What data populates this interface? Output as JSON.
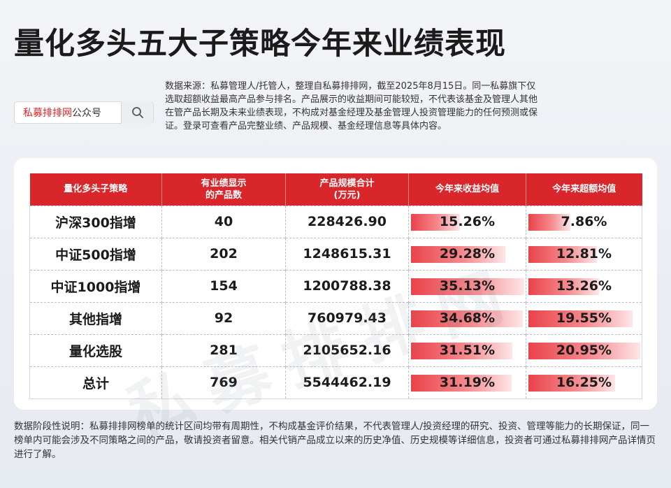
{
  "title": "量化多头五大子策略今年来业绩表现",
  "search": {
    "brand": "私募排排网",
    "suffix": "公众号",
    "icon": "search-icon"
  },
  "source_note": "数据来源：私募管理人/托管人，整理自私募排排网，截至2025年8月15日。同一私募旗下仅选取超额收益最高产品参与排名。产品展示的收益期间可能较短，不代表该基金及管理人其他在管产品长期及未来业绩表现，不构成对基金经理及基金管理人投资管理能力的任何预测或保证。登录可查看产品完整业绩、产品规模、基金经理信息等具体内容。",
  "watermark": "私募排排网",
  "colors": {
    "header_red": "#d8262b",
    "bar_red": "#e9434a"
  },
  "table": {
    "headers": [
      "量化多头子策略",
      "有业绩显示\n的产品数",
      "产品规模合计\n(万元)",
      "今年来收益均值",
      "今年来超额均值"
    ],
    "bar_scale": {
      "return_max": 35.13,
      "excess_max": 20.95
    },
    "rows": [
      {
        "strategy": "沪深300指增",
        "count": "40",
        "scale": "228426.90",
        "ret": "15.26%",
        "ret_value": 15.26,
        "excess": "7.86%",
        "excess_value": 7.86
      },
      {
        "strategy": "中证500指增",
        "count": "202",
        "scale": "1248615.31",
        "ret": "29.28%",
        "ret_value": 29.28,
        "excess": "12.81%",
        "excess_value": 12.81
      },
      {
        "strategy": "中证1000指增",
        "count": "154",
        "scale": "1200788.38",
        "ret": "35.13%",
        "ret_value": 35.13,
        "excess": "13.26%",
        "excess_value": 13.26
      },
      {
        "strategy": "其他指增",
        "count": "92",
        "scale": "760979.43",
        "ret": "34.68%",
        "ret_value": 34.68,
        "excess": "19.55%",
        "excess_value": 19.55
      },
      {
        "strategy": "量化选股",
        "count": "281",
        "scale": "2105652.16",
        "ret": "31.51%",
        "ret_value": 31.51,
        "excess": "20.95%",
        "excess_value": 20.95
      },
      {
        "strategy": "总计",
        "count": "769",
        "scale": "5544462.19",
        "ret": "31.19%",
        "ret_value": 31.19,
        "excess": "16.25%",
        "excess_value": 16.25
      }
    ]
  },
  "footnote": "数据阶段性说明：私募排排网榜单的统计区间均带有周期性，不构成基金评价结果，不代表管理人/投资经理的研究、投资、管理等能力的长期保证，同一榜单内可能会涉及不同策略之间的产品，敬请投资者留意。相关代销产品成立以来的历史净值、历史规模等详细信息，投资者可通过私募排排网产品详情页进行了解。"
}
